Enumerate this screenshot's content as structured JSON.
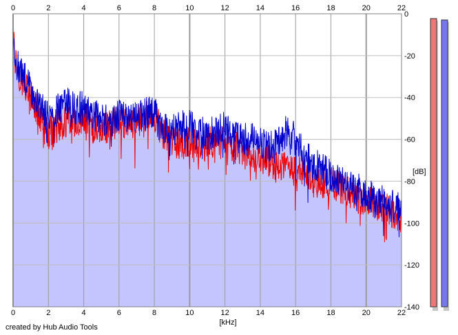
{
  "chart_data": {
    "type": "line",
    "title": "",
    "xlabel": "[kHz]",
    "ylabel": "[dB]",
    "xlim": [
      0,
      22
    ],
    "ylim": [
      -140,
      0
    ],
    "x_ticks": [
      "0",
      "2",
      "4",
      "6",
      "8",
      "10",
      "12",
      "14",
      "16",
      "18",
      "20",
      "22"
    ],
    "y_ticks": [
      "0",
      "-20",
      "-40",
      "-60",
      "-80",
      "-100",
      "-120",
      "-140"
    ],
    "grid": true,
    "fill_color": "#c4c4ff",
    "series": [
      {
        "color": "#ee0000",
        "x": [
          0,
          0.05,
          0.1,
          0.2,
          0.3,
          0.5,
          0.8,
          1.0,
          1.2,
          1.5,
          1.8,
          2.0,
          2.5,
          3.0,
          3.5,
          4.0,
          4.5,
          5.0,
          5.5,
          6.0,
          6.5,
          7.0,
          7.5,
          8.0,
          8.5,
          9.0,
          9.5,
          10.0,
          10.5,
          11.0,
          11.5,
          12.0,
          12.5,
          13.0,
          13.5,
          14.0,
          14.5,
          15.0,
          15.5,
          16.0,
          16.5,
          17.0,
          17.5,
          18.0,
          18.5,
          19.0,
          19.5,
          20.0,
          20.5,
          21.0,
          21.5,
          22.0
        ],
        "values": [
          -15,
          -7,
          -20,
          -25,
          -28,
          -32,
          -35,
          -40,
          -44,
          -48,
          -52,
          -58,
          -54,
          -52,
          -53,
          -50,
          -54,
          -55,
          -54,
          -50,
          -53,
          -52,
          -50,
          -48,
          -58,
          -62,
          -62,
          -62,
          -64,
          -62,
          -60,
          -62,
          -63,
          -67,
          -68,
          -71,
          -70,
          -74,
          -73,
          -75,
          -76,
          -80,
          -82,
          -80,
          -83,
          -85,
          -88,
          -89,
          -92,
          -93,
          -95,
          -97
        ]
      },
      {
        "color": "#0000cc",
        "x": [
          0,
          0.05,
          0.1,
          0.2,
          0.3,
          0.5,
          0.8,
          1.0,
          1.2,
          1.5,
          1.8,
          2.0,
          2.5,
          3.0,
          3.5,
          4.0,
          4.5,
          5.0,
          5.5,
          6.0,
          6.5,
          7.0,
          7.5,
          8.0,
          8.5,
          9.0,
          9.5,
          10.0,
          10.5,
          11.0,
          11.5,
          12.0,
          12.5,
          13.0,
          13.5,
          14.0,
          14.5,
          15.0,
          15.5,
          16.0,
          16.5,
          17.0,
          17.5,
          18.0,
          18.5,
          19.0,
          19.5,
          20.0,
          20.5,
          21.0,
          21.5,
          22.0
        ],
        "values": [
          -18,
          -10,
          -24,
          -28,
          -25,
          -30,
          -32,
          -36,
          -40,
          -44,
          -48,
          -50,
          -45,
          -42,
          -46,
          -44,
          -48,
          -50,
          -52,
          -48,
          -51,
          -50,
          -48,
          -46,
          -54,
          -56,
          -54,
          -54,
          -56,
          -58,
          -56,
          -53,
          -58,
          -60,
          -60,
          -62,
          -64,
          -60,
          -56,
          -60,
          -68,
          -72,
          -74,
          -78,
          -80,
          -82,
          -84,
          -86,
          -88,
          -90,
          -92,
          -94
        ]
      }
    ]
  },
  "meters": {
    "left_color": "#ee7777",
    "right_color": "#7777ee"
  },
  "credit": "created by Hub Audio Tools"
}
